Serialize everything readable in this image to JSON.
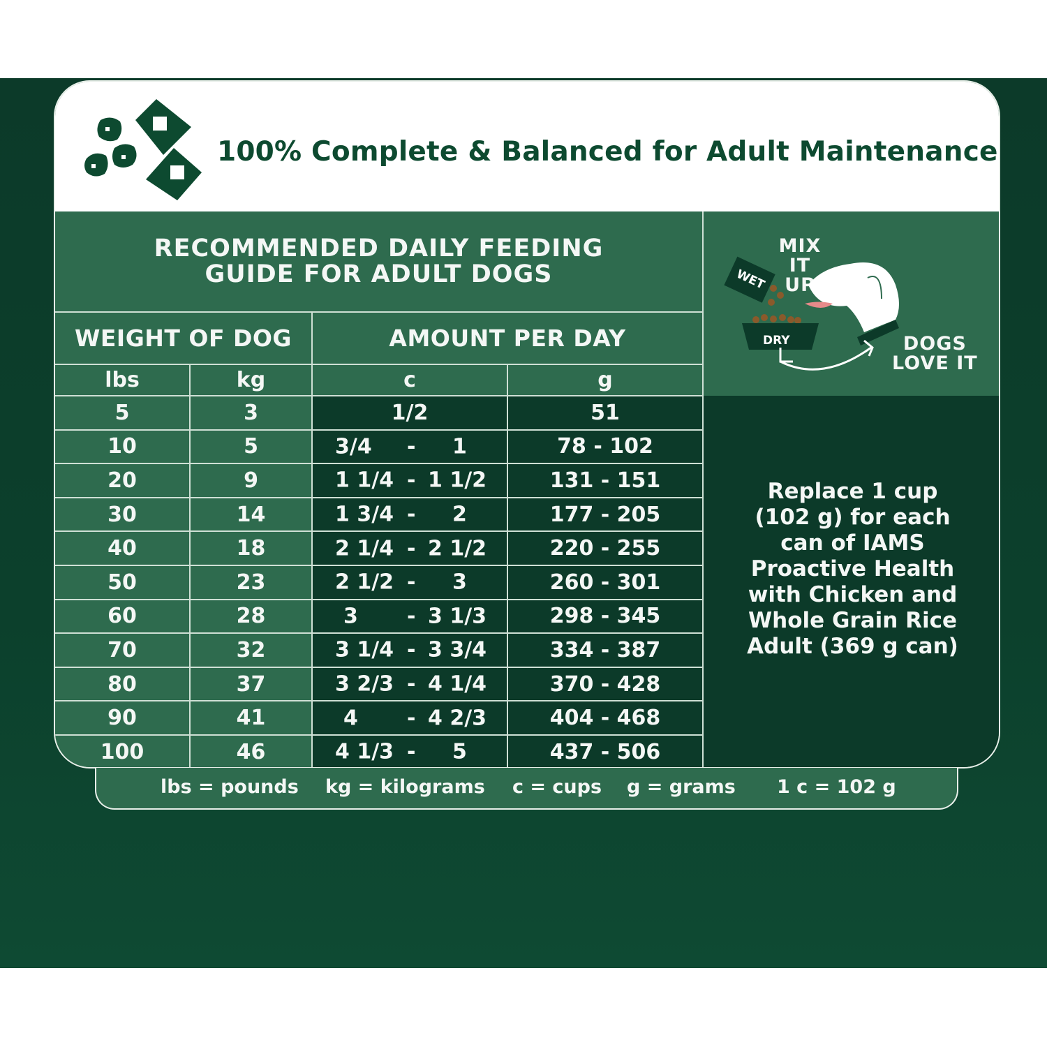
{
  "header": {
    "title": "100% Complete & Balanced for Adult Maintenance"
  },
  "guide": {
    "title_line1": "RECOMMENDED DAILY FEEDING",
    "title_line2": "GUIDE FOR ADULT DOGS",
    "col_weight": "WEIGHT OF DOG",
    "col_amount": "AMOUNT PER DAY",
    "units": [
      "lbs",
      "kg",
      "c",
      "g"
    ],
    "rows": [
      {
        "lbs": "5",
        "kg": "3",
        "c_low": "1/2",
        "c_dash": "",
        "c_high": "",
        "g": "51"
      },
      {
        "lbs": "10",
        "kg": "5",
        "c_low": "3/4",
        "c_dash": "-",
        "c_high": "1",
        "g": "78 - 102"
      },
      {
        "lbs": "20",
        "kg": "9",
        "c_low": "1 1/4",
        "c_dash": "-",
        "c_high": "1 1/2",
        "g": "131 - 151"
      },
      {
        "lbs": "30",
        "kg": "14",
        "c_low": "1 3/4",
        "c_dash": "-",
        "c_high": "2",
        "g": "177 - 205"
      },
      {
        "lbs": "40",
        "kg": "18",
        "c_low": "2 1/4",
        "c_dash": "-",
        "c_high": "2 1/2",
        "g": "220 - 255"
      },
      {
        "lbs": "50",
        "kg": "23",
        "c_low": "2 1/2",
        "c_dash": "-",
        "c_high": "3",
        "g": "260 - 301"
      },
      {
        "lbs": "60",
        "kg": "28",
        "c_low": "3",
        "c_dash": "-",
        "c_high": "3 1/3",
        "g": "298 - 345"
      },
      {
        "lbs": "70",
        "kg": "32",
        "c_low": "3 1/4",
        "c_dash": "-",
        "c_high": "3 3/4",
        "g": "334 - 387"
      },
      {
        "lbs": "80",
        "kg": "37",
        "c_low": "3 2/3",
        "c_dash": "-",
        "c_high": "4 1/4",
        "g": "370 - 428"
      },
      {
        "lbs": "90",
        "kg": "41",
        "c_low": "4",
        "c_dash": "-",
        "c_high": "4 2/3",
        "g": "404 - 468"
      },
      {
        "lbs": "100",
        "kg": "46",
        "c_low": "4 1/3",
        "c_dash": "-",
        "c_high": "5",
        "g": "437 - 506"
      }
    ]
  },
  "mix": {
    "line1": "MIX IT",
    "line2": "UP",
    "wet": "WET",
    "dry": "DRY",
    "love1": "DOGS",
    "love2": "LOVE IT"
  },
  "note": {
    "lines": [
      "Replace 1 cup",
      "(102 g) for each",
      "can of IAMS",
      "Proactive Health",
      "with Chicken and",
      "Whole Grain Rice",
      "Adult (369 g can)"
    ]
  },
  "legend": [
    "lbs = pounds",
    "kg = kilograms",
    "c = cups",
    "g = grams",
    "1 c = 102 g"
  ],
  "colors": {
    "dark_green": "#0c3a29",
    "mid_green": "#2e6b4e",
    "text_green": "#0d4a30",
    "white": "#ffffff"
  }
}
